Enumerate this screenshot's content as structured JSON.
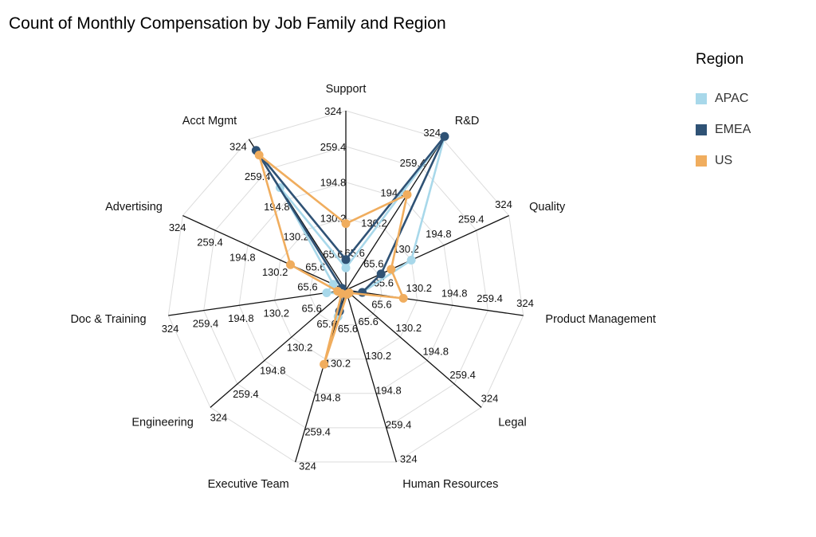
{
  "chart_data": {
    "type": "radar",
    "title": "Count of Monthly Compensation by Job Family and Region",
    "legend_title": "Region",
    "legend_position": "right",
    "categories": [
      "Support",
      "R&D",
      "Quality",
      "Product Management",
      "Legal",
      "Human Resources",
      "Executive Team",
      "Engineering",
      "Doc & Training",
      "Advertising",
      "Acct Mgmt"
    ],
    "ticks": [
      65.6,
      130.2,
      194.8,
      259.4,
      324
    ],
    "tick_labels": [
      "65.6",
      "130.2",
      "194.8",
      "259.4",
      "324"
    ],
    "rmin": 0,
    "rmax": 324,
    "grid": true,
    "series": [
      {
        "name": "APAC",
        "color": "#a8d8ea",
        "values": [
          40,
          330,
          130,
          30,
          8,
          8,
          50,
          10,
          35,
          25,
          220
        ]
      },
      {
        "name": "EMEA",
        "color": "#2f5275",
        "values": [
          55,
          330,
          70,
          30,
          8,
          8,
          40,
          10,
          8,
          8,
          300
        ]
      },
      {
        "name": "US",
        "color": "#f0ad5e",
        "values": [
          120,
          205,
          90,
          105,
          8,
          8,
          140,
          10,
          15,
          110,
          290
        ]
      }
    ]
  }
}
